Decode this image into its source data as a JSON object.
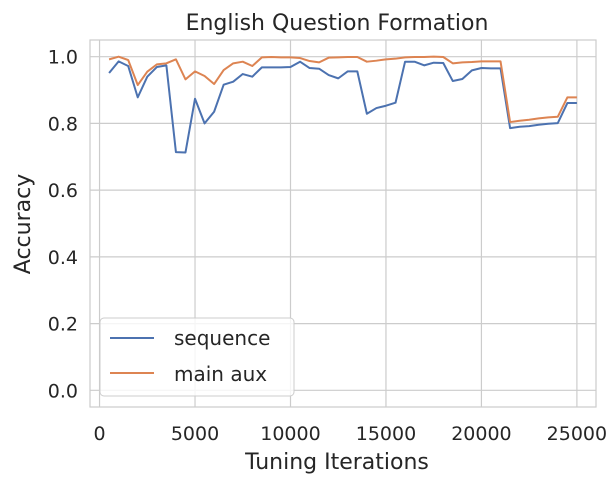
{
  "chart_data": {
    "type": "line",
    "title": "English Question Formation",
    "xlabel": "Tuning Iterations",
    "ylabel": "Accuracy",
    "xlim": [
      -500,
      26000
    ],
    "ylim": [
      -0.05,
      1.05
    ],
    "xticks": [
      0,
      5000,
      10000,
      15000,
      20000,
      25000
    ],
    "yticks": [
      0.0,
      0.2,
      0.4,
      0.6,
      0.8,
      1.0
    ],
    "xtick_labels": [
      "0",
      "5000",
      "10000",
      "15000",
      "20000",
      "25000"
    ],
    "ytick_labels": [
      "0.0",
      "0.2",
      "0.4",
      "0.6",
      "0.8",
      "1.0"
    ],
    "grid": true,
    "legend_position": "lower-left",
    "series": [
      {
        "name": "sequence",
        "color": "#4c72b0",
        "x": [
          500,
          1000,
          1500,
          2000,
          2500,
          3000,
          3500,
          4000,
          4500,
          5000,
          5500,
          6000,
          6500,
          7000,
          7500,
          8000,
          8500,
          9000,
          9500,
          10000,
          10500,
          11000,
          11500,
          12000,
          12500,
          13000,
          13500,
          14000,
          14500,
          15000,
          15500,
          16000,
          16500,
          17000,
          17500,
          18000,
          18500,
          19000,
          19500,
          20000,
          20500,
          21000,
          21500,
          22000,
          22500,
          23000,
          23500,
          24000,
          24500,
          25000
        ],
        "values": [
          0.951,
          0.986,
          0.972,
          0.878,
          0.94,
          0.969,
          0.974,
          0.714,
          0.713,
          0.874,
          0.8,
          0.835,
          0.916,
          0.925,
          0.948,
          0.94,
          0.968,
          0.968,
          0.968,
          0.969,
          0.985,
          0.966,
          0.964,
          0.945,
          0.935,
          0.956,
          0.956,
          0.829,
          0.846,
          0.853,
          0.862,
          0.985,
          0.985,
          0.974,
          0.982,
          0.981,
          0.927,
          0.933,
          0.959,
          0.966,
          0.965,
          0.965,
          0.786,
          0.79,
          0.792,
          0.796,
          0.799,
          0.801,
          0.861,
          0.861
        ]
      },
      {
        "name": "main aux",
        "color": "#dd8452",
        "x": [
          500,
          1000,
          1500,
          2000,
          2500,
          3000,
          3500,
          4000,
          4500,
          5000,
          5500,
          6000,
          6500,
          7000,
          7500,
          8000,
          8500,
          9000,
          9500,
          10000,
          10500,
          11000,
          11500,
          12000,
          12500,
          13000,
          13500,
          14000,
          14500,
          15000,
          15500,
          16000,
          16500,
          17000,
          17500,
          18000,
          18500,
          19000,
          19500,
          20000,
          20500,
          21000,
          21500,
          22000,
          22500,
          23000,
          23500,
          24000,
          24500,
          25000
        ],
        "values": [
          0.992,
          1.0,
          0.99,
          0.915,
          0.955,
          0.977,
          0.98,
          0.992,
          0.932,
          0.956,
          0.942,
          0.918,
          0.96,
          0.98,
          0.985,
          0.972,
          0.998,
          0.999,
          0.998,
          0.998,
          0.996,
          0.987,
          0.983,
          0.997,
          0.998,
          0.999,
          0.999,
          0.985,
          0.988,
          0.992,
          0.994,
          0.998,
          0.999,
          0.999,
          1.0,
          0.999,
          0.98,
          0.983,
          0.984,
          0.986,
          0.986,
          0.986,
          0.804,
          0.808,
          0.811,
          0.815,
          0.818,
          0.82,
          0.878,
          0.878
        ]
      }
    ]
  }
}
